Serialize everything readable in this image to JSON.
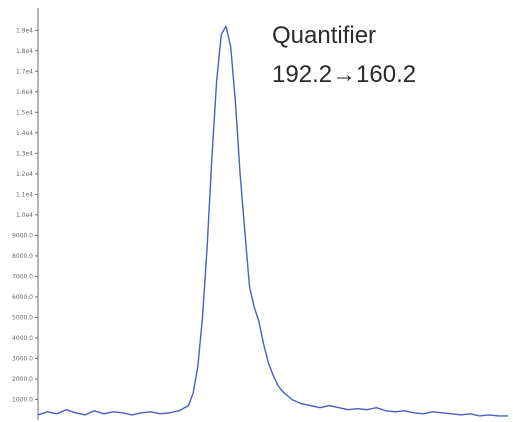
{
  "chart_data": {
    "type": "line",
    "title": "",
    "xlabel": "",
    "ylabel": "",
    "annotations": [
      "Quantifier",
      "192.2→160.2"
    ],
    "yticks": [
      "1.9e4",
      "1.8e4",
      "1.7e4",
      "1.6e4",
      "1.5e4",
      "1.4e4",
      "1.3e4",
      "1.2e4",
      "1.1e4",
      "1.0e4",
      "9000.0",
      "8000.0",
      "7000.0",
      "6000.0",
      "5000.0",
      "4000.0",
      "3000.0",
      "2000.0",
      "1000.0"
    ],
    "ytick_values": [
      19000,
      18000,
      17000,
      16000,
      15000,
      14000,
      13000,
      12000,
      11000,
      10000,
      9000,
      8000,
      7000,
      6000,
      5000,
      4000,
      3000,
      2000,
      1000
    ],
    "ylim": [
      0,
      19500
    ],
    "xlim": [
      0,
      100
    ],
    "grid": false,
    "series": [
      {
        "color": "#4a5fc1",
        "x": [
          0,
          2,
          4,
          6,
          8,
          10,
          12,
          14,
          16,
          18,
          20,
          22,
          24,
          26,
          28,
          30,
          32,
          33,
          34,
          35,
          36,
          37,
          38,
          39,
          40,
          41,
          42,
          43,
          44,
          45,
          46,
          47,
          48,
          49,
          50,
          51,
          52,
          53,
          54,
          56,
          58,
          60,
          62,
          64,
          66,
          68,
          70,
          72,
          74,
          76,
          78,
          80,
          82,
          84,
          86,
          88,
          90,
          92,
          94,
          96,
          98,
          100
        ],
        "values": [
          250,
          400,
          300,
          500,
          350,
          250,
          450,
          300,
          400,
          350,
          250,
          350,
          400,
          300,
          350,
          450,
          700,
          1300,
          2600,
          5000,
          8500,
          12800,
          16500,
          18800,
          19200,
          18200,
          15500,
          12000,
          9200,
          6500,
          5500,
          4800,
          3700,
          2800,
          2200,
          1700,
          1400,
          1200,
          1000,
          800,
          700,
          600,
          700,
          600,
          500,
          550,
          500,
          600,
          450,
          400,
          450,
          350,
          300,
          400,
          350,
          300,
          250,
          300,
          200,
          250,
          200,
          200
        ]
      }
    ]
  }
}
